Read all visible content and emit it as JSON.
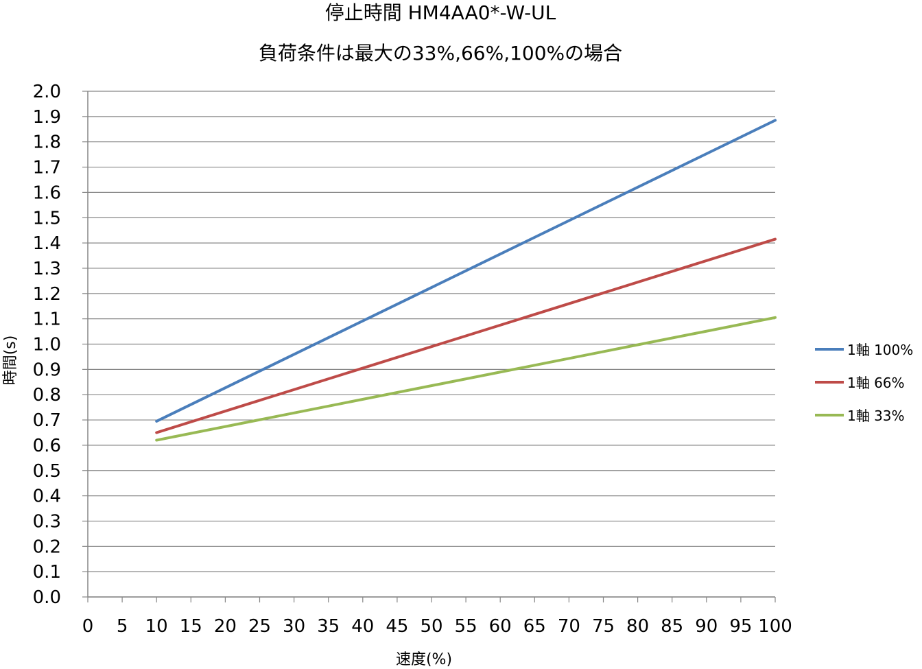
{
  "chart_data": {
    "type": "line",
    "title": "停止時間 HM4AA0*-W-UL",
    "subtitle": "負荷条件は最大の33%,66%,100%の場合",
    "xlabel": "速度(%)",
    "ylabel": "時間(s)",
    "xlim": [
      0,
      100
    ],
    "ylim": [
      0,
      2.0
    ],
    "x_ticks": [
      0,
      5,
      10,
      15,
      20,
      25,
      30,
      35,
      40,
      45,
      50,
      55,
      60,
      65,
      70,
      75,
      80,
      85,
      90,
      95,
      100
    ],
    "y_ticks": [
      "0.0",
      "0.1",
      "0.2",
      "0.3",
      "0.4",
      "0.5",
      "0.6",
      "0.7",
      "0.8",
      "0.9",
      "1.0",
      "1.1",
      "1.2",
      "1.3",
      "1.4",
      "1.5",
      "1.6",
      "1.7",
      "1.8",
      "1.9",
      "2.0"
    ],
    "grid": true,
    "legend_position": "right",
    "x": [
      10,
      100
    ],
    "series": [
      {
        "name": "1軸 100%",
        "color": "#4a7ebb",
        "values": [
          0.695,
          1.885
        ]
      },
      {
        "name": "1軸 66%",
        "color": "#be4b48",
        "values": [
          0.65,
          1.415
        ]
      },
      {
        "name": "1軸 33%",
        "color": "#98b954",
        "values": [
          0.62,
          1.105
        ]
      }
    ]
  }
}
